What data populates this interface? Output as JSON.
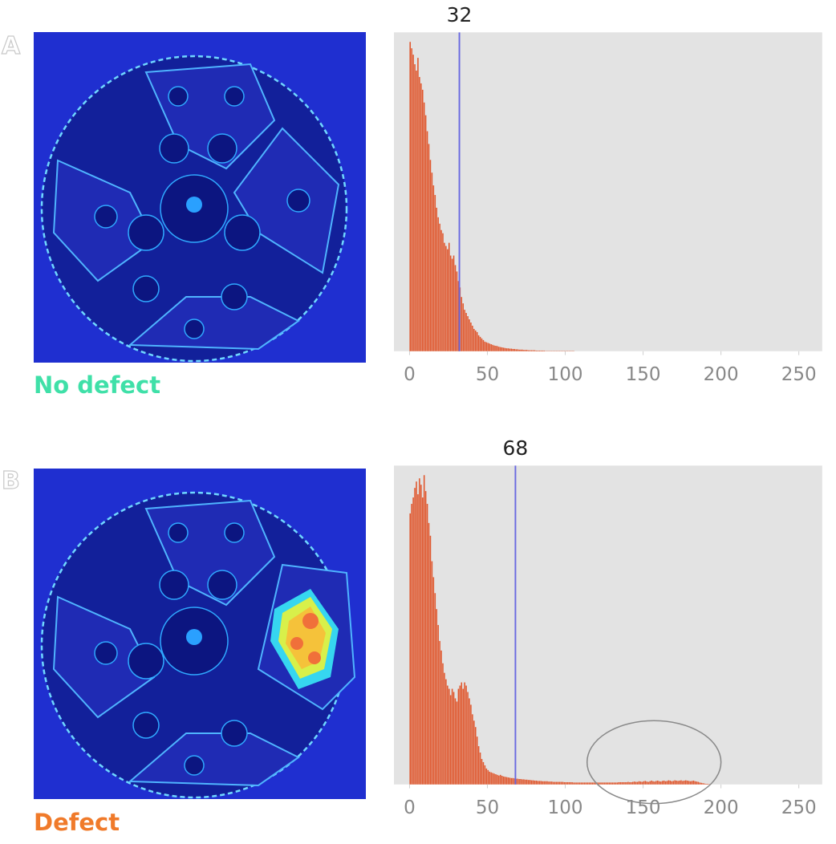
{
  "panels": [
    {
      "letter": "A",
      "status": "No defect",
      "status_color": "#3fe0a8",
      "chart_data": {
        "type": "bar",
        "title": "32",
        "threshold": 32,
        "threshold_color": "#6a6ae0",
        "bar_color": "#e0562c",
        "background": "#e3e3e3",
        "xlim": [
          -10,
          265
        ],
        "xticks": [
          "0",
          "50",
          "100",
          "150",
          "200",
          "250"
        ],
        "ylim": [
          0,
          1
        ],
        "grid": false,
        "bins": {
          "x_start": 0,
          "bin_width": 1,
          "values": [
            0.97,
            0.95,
            0.93,
            0.9,
            0.88,
            0.92,
            0.86,
            0.84,
            0.82,
            0.78,
            0.74,
            0.69,
            0.65,
            0.6,
            0.56,
            0.52,
            0.49,
            0.45,
            0.42,
            0.4,
            0.38,
            0.37,
            0.34,
            0.33,
            0.32,
            0.34,
            0.3,
            0.29,
            0.3,
            0.27,
            0.25,
            0.22,
            0.2,
            0.17,
            0.15,
            0.13,
            0.12,
            0.11,
            0.1,
            0.09,
            0.08,
            0.07,
            0.065,
            0.06,
            0.05,
            0.045,
            0.04,
            0.035,
            0.03,
            0.028,
            0.026,
            0.024,
            0.022,
            0.02,
            0.018,
            0.017,
            0.016,
            0.014,
            0.013,
            0.012,
            0.011,
            0.01,
            0.009,
            0.009,
            0.008,
            0.008,
            0.007,
            0.007,
            0.006,
            0.006,
            0.005,
            0.005,
            0.005,
            0.004,
            0.004,
            0.004,
            0.003,
            0.003,
            0.003,
            0.003,
            0.003,
            0.002,
            0.002,
            0.002,
            0.002,
            0.002,
            0.002,
            0.001,
            0.001,
            0.001,
            0.001,
            0.001,
            0.001,
            0.001,
            0.001,
            0.001,
            0.001,
            0.001,
            0.001,
            0.001,
            0.001,
            0.001,
            0.001,
            0.001,
            0.001,
            0.001
          ]
        },
        "annotation": null
      }
    },
    {
      "letter": "B",
      "status": "Defect",
      "status_color": "#f07a2a",
      "chart_data": {
        "type": "bar",
        "title": "68",
        "threshold": 68,
        "threshold_color": "#6a6ae0",
        "bar_color": "#e0562c",
        "background": "#e3e3e3",
        "xlim": [
          -10,
          265
        ],
        "xticks": [
          "0",
          "50",
          "100",
          "150",
          "200",
          "250"
        ],
        "ylim": [
          0,
          1
        ],
        "grid": false,
        "bins": {
          "x_start": 0,
          "bin_width": 1,
          "values": [
            0.85,
            0.88,
            0.9,
            0.93,
            0.95,
            0.91,
            0.96,
            0.94,
            0.9,
            0.97,
            0.92,
            0.88,
            0.82,
            0.78,
            0.7,
            0.65,
            0.6,
            0.55,
            0.5,
            0.45,
            0.42,
            0.38,
            0.35,
            0.33,
            0.31,
            0.3,
            0.28,
            0.3,
            0.29,
            0.27,
            0.26,
            0.3,
            0.31,
            0.32,
            0.3,
            0.32,
            0.31,
            0.29,
            0.27,
            0.25,
            0.22,
            0.2,
            0.18,
            0.15,
            0.12,
            0.1,
            0.08,
            0.07,
            0.06,
            0.05,
            0.045,
            0.04,
            0.038,
            0.036,
            0.034,
            0.032,
            0.03,
            0.028,
            0.03,
            0.027,
            0.025,
            0.024,
            0.023,
            0.022,
            0.021,
            0.02,
            0.02,
            0.019,
            0.018,
            0.018,
            0.017,
            0.017,
            0.016,
            0.016,
            0.015,
            0.015,
            0.014,
            0.014,
            0.013,
            0.013,
            0.012,
            0.012,
            0.011,
            0.011,
            0.011,
            0.01,
            0.01,
            0.01,
            0.01,
            0.009,
            0.009,
            0.009,
            0.008,
            0.008,
            0.008,
            0.008,
            0.008,
            0.008,
            0.008,
            0.007,
            0.007,
            0.007,
            0.007,
            0.007,
            0.007,
            0.006,
            0.006,
            0.006,
            0.006,
            0.006,
            0.006,
            0.006,
            0.006,
            0.006,
            0.006,
            0.006,
            0.006,
            0.006,
            0.006,
            0.006,
            0.006,
            0.006,
            0.006,
            0.006,
            0.006,
            0.006,
            0.006,
            0.006,
            0.006,
            0.006,
            0.006,
            0.006,
            0.006,
            0.006,
            0.007,
            0.007,
            0.007,
            0.007,
            0.007,
            0.007,
            0.008,
            0.007,
            0.007,
            0.008,
            0.009,
            0.008,
            0.008,
            0.01,
            0.009,
            0.008,
            0.01,
            0.011,
            0.009,
            0.008,
            0.01,
            0.012,
            0.01,
            0.009,
            0.011,
            0.012,
            0.01,
            0.009,
            0.011,
            0.012,
            0.01,
            0.011,
            0.013,
            0.012,
            0.01,
            0.011,
            0.013,
            0.012,
            0.011,
            0.012,
            0.013,
            0.011,
            0.012,
            0.013,
            0.012,
            0.011,
            0.01,
            0.011,
            0.012,
            0.01,
            0.009,
            0.008,
            0.006,
            0.005,
            0.004,
            0.003,
            0.002,
            0.002,
            0.001,
            0.001
          ]
        },
        "annotation": {
          "shape": "ellipse",
          "cx": 157,
          "rx": 43,
          "ry_fraction": 0.13,
          "cy_fraction": 0.07,
          "color": "#8a8a8a"
        }
      }
    }
  ]
}
